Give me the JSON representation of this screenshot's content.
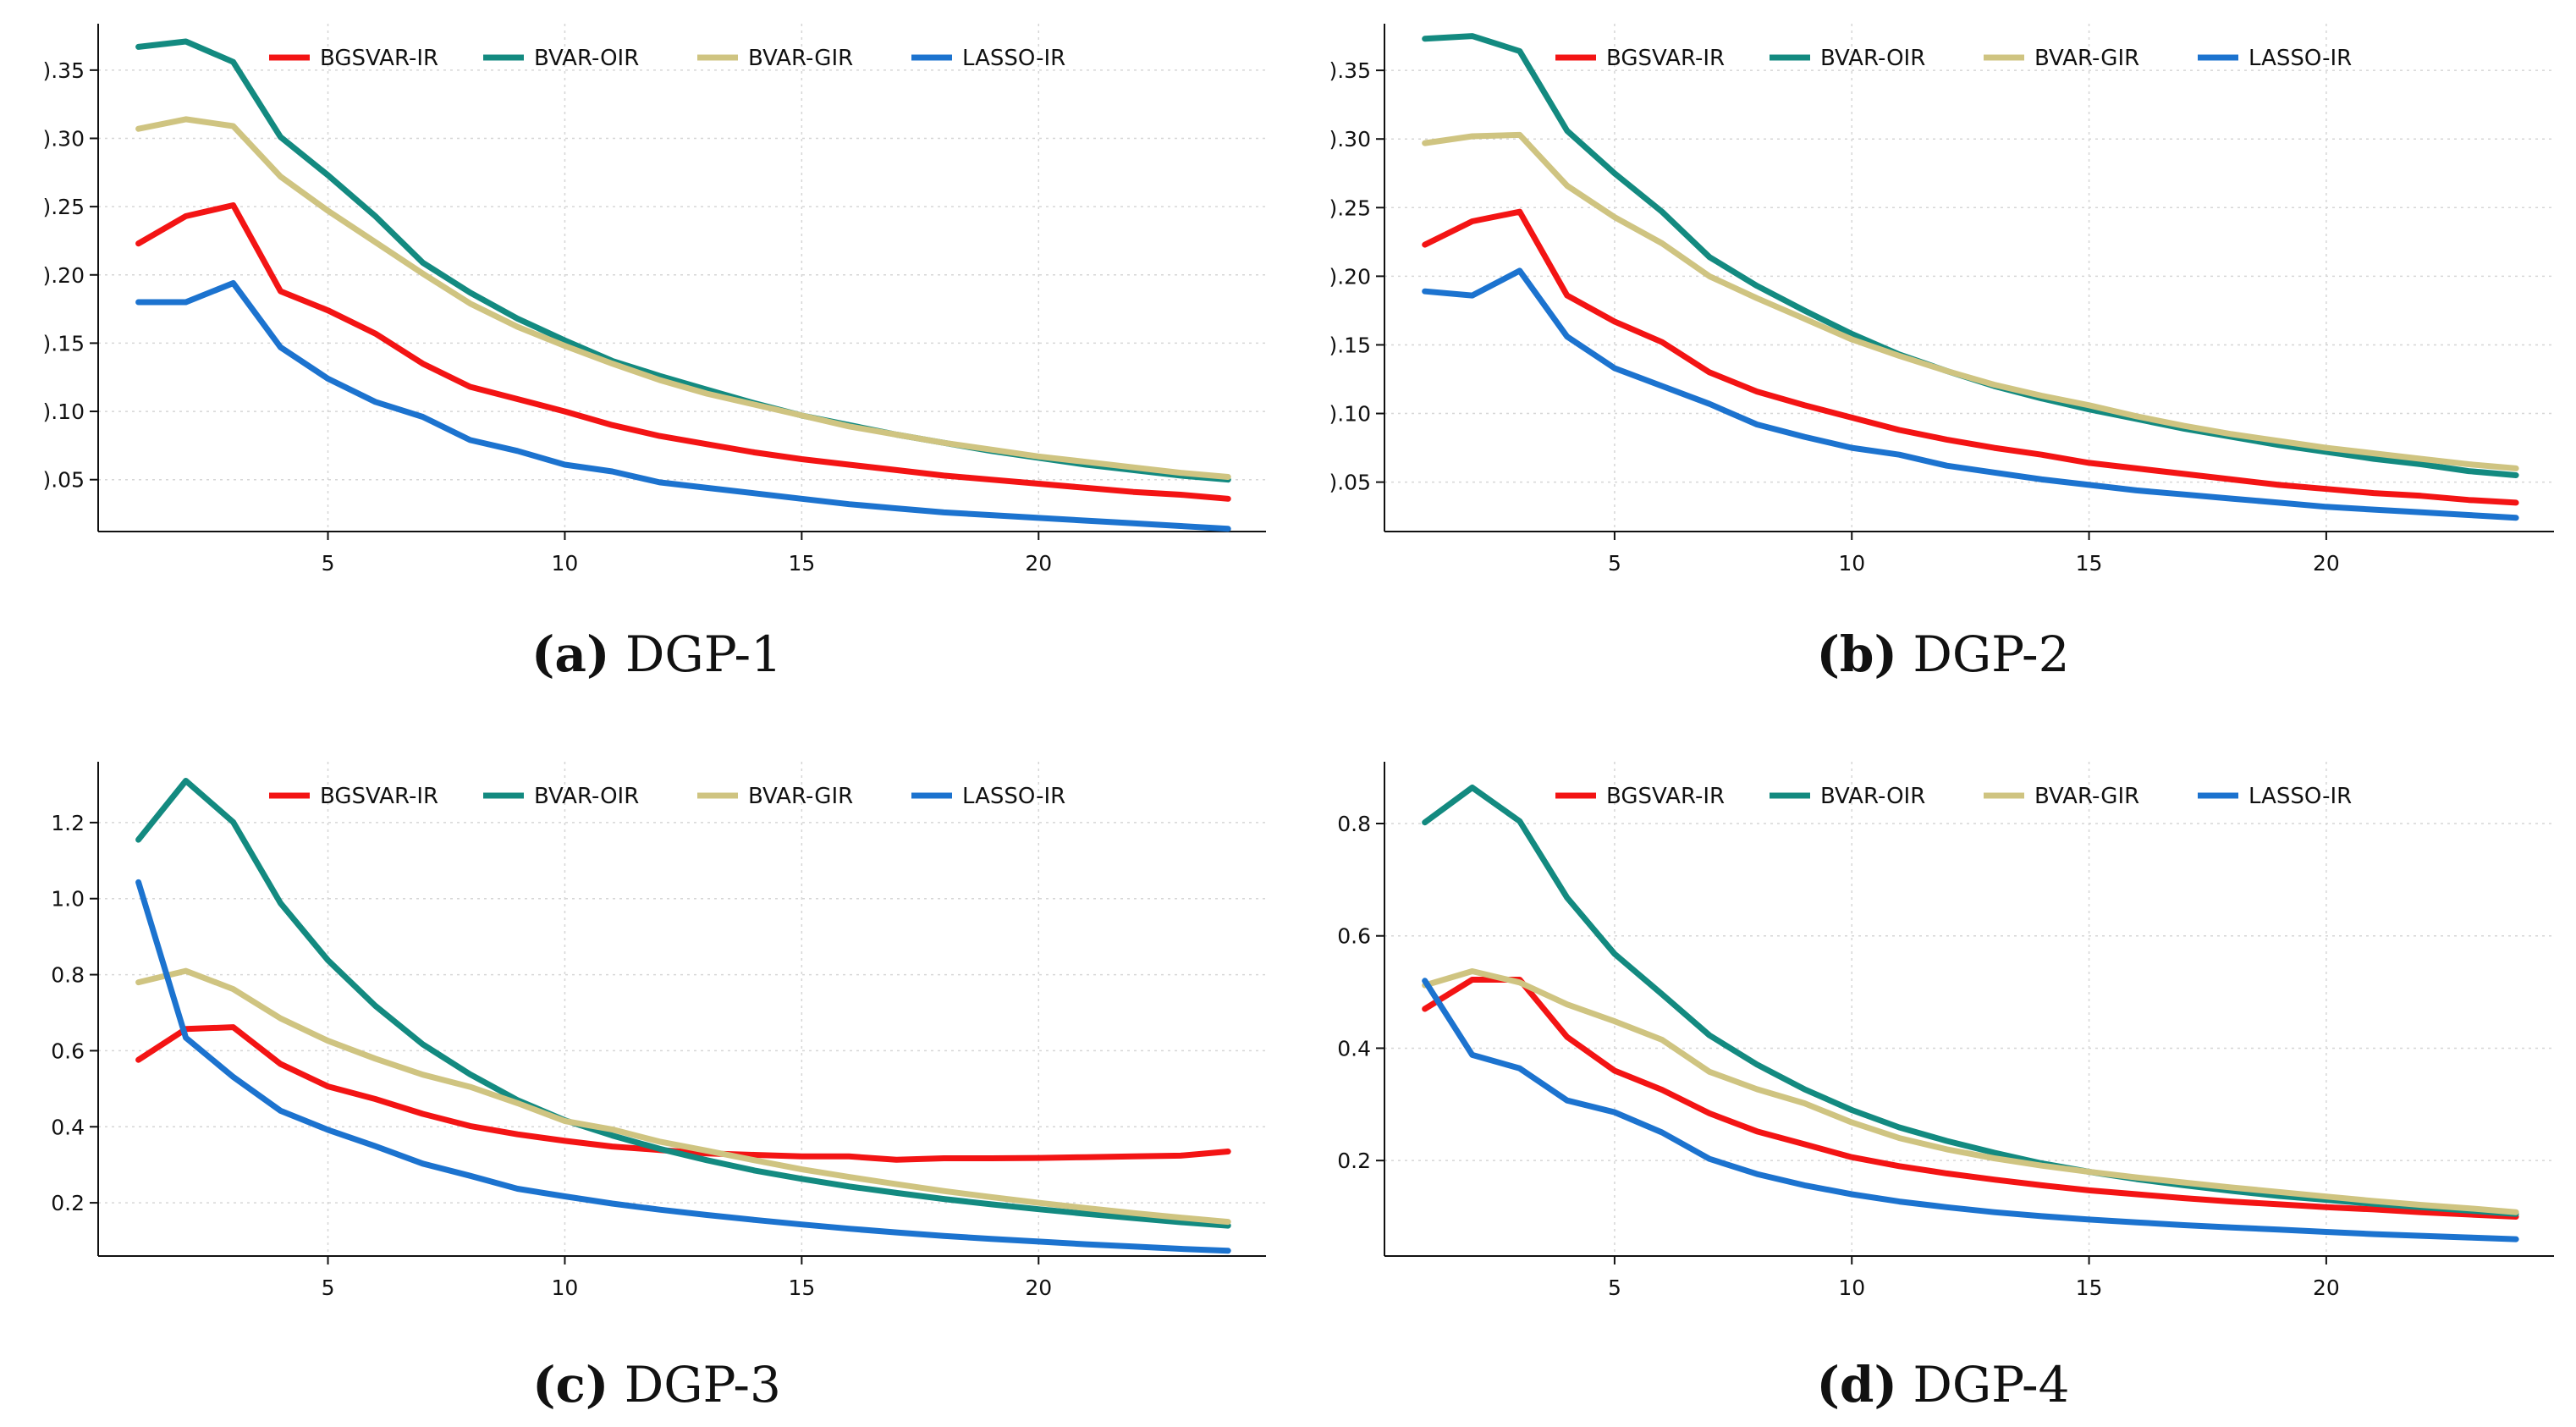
{
  "colors": {
    "BGSVAR-IR": "#f31414",
    "BVAR-OIR": "#138a80",
    "BVAR-GIR": "#cfc481",
    "LASSO-IR": "#1c73cf",
    "grid": "#d6d6d6",
    "axis": "#111111"
  },
  "chart_data": [
    {
      "type": "line",
      "caption_letter": "(a)",
      "caption_text": "DGP-1",
      "legend": [
        "BGSVAR-IR",
        "BVAR-OIR",
        "BVAR-GIR",
        "LASSO-IR"
      ],
      "x": [
        1,
        2,
        3,
        4,
        5,
        6,
        7,
        8,
        9,
        10,
        11,
        12,
        13,
        14,
        15,
        16,
        17,
        18,
        19,
        20,
        21,
        22,
        23,
        24
      ],
      "xticks": [
        5,
        10,
        15,
        20
      ],
      "xtick_labels": [
        "5",
        "10",
        "15",
        "20"
      ],
      "yticks": [
        0.05,
        0.1,
        0.15,
        0.2,
        0.25,
        0.3,
        0.35
      ],
      "ytick_labels": [
        ").05",
        ").10",
        ").15",
        ").20",
        ").25",
        ").30",
        ").35"
      ],
      "xlim": [
        0.15,
        24.8
      ],
      "ylim": [
        0.012,
        0.384
      ],
      "series": [
        {
          "name": "BGSVAR-IR",
          "values": [
            0.223,
            0.243,
            0.251,
            0.188,
            0.174,
            0.157,
            0.135,
            0.118,
            0.109,
            0.1,
            0.09,
            0.082,
            0.076,
            0.07,
            0.065,
            0.061,
            0.057,
            0.053,
            0.05,
            0.047,
            0.044,
            0.041,
            0.039,
            0.036
          ]
        },
        {
          "name": "BVAR-OIR",
          "values": [
            0.367,
            0.371,
            0.356,
            0.301,
            0.273,
            0.243,
            0.209,
            0.187,
            0.168,
            0.152,
            0.137,
            0.126,
            0.116,
            0.106,
            0.097,
            0.09,
            0.083,
            0.077,
            0.071,
            0.066,
            0.061,
            0.057,
            0.053,
            0.05
          ]
        },
        {
          "name": "BVAR-GIR",
          "values": [
            0.307,
            0.314,
            0.309,
            0.272,
            0.247,
            0.224,
            0.201,
            0.179,
            0.162,
            0.148,
            0.135,
            0.123,
            0.113,
            0.105,
            0.097,
            0.089,
            0.083,
            0.077,
            0.072,
            0.067,
            0.063,
            0.059,
            0.055,
            0.052
          ]
        },
        {
          "name": "LASSO-IR",
          "values": [
            0.18,
            0.18,
            0.194,
            0.147,
            0.124,
            0.107,
            0.096,
            0.079,
            0.071,
            0.061,
            0.056,
            0.048,
            0.044,
            0.04,
            0.036,
            0.032,
            0.029,
            0.026,
            0.024,
            0.022,
            0.02,
            0.018,
            0.016,
            0.014
          ]
        }
      ]
    },
    {
      "type": "line",
      "caption_letter": "(b)",
      "caption_text": "DGP-2",
      "legend": [
        "BGSVAR-IR",
        "BVAR-OIR",
        "BVAR-GIR",
        "LASSO-IR"
      ],
      "x": [
        1,
        2,
        3,
        4,
        5,
        6,
        7,
        8,
        9,
        10,
        11,
        12,
        13,
        14,
        15,
        16,
        17,
        18,
        19,
        20,
        21,
        22,
        23,
        24
      ],
      "xticks": [
        5,
        10,
        15,
        20
      ],
      "xtick_labels": [
        "5",
        "10",
        "15",
        "20"
      ],
      "yticks": [
        0.05,
        0.1,
        0.15,
        0.2,
        0.25,
        0.3,
        0.35
      ],
      "ytick_labels": [
        ").05",
        ").10",
        ").15",
        ").20",
        ").25",
        ").30",
        ").35"
      ],
      "xlim": [
        0.15,
        24.8
      ],
      "ylim": [
        0.014,
        0.384
      ],
      "series": [
        {
          "name": "BGSVAR-IR",
          "values": [
            0.223,
            0.24,
            0.247,
            0.186,
            0.167,
            0.152,
            0.13,
            0.116,
            0.106,
            0.097,
            0.088,
            0.081,
            0.075,
            0.07,
            0.064,
            0.06,
            0.056,
            0.052,
            0.048,
            0.045,
            0.042,
            0.04,
            0.037,
            0.035
          ]
        },
        {
          "name": "BVAR-OIR",
          "values": [
            0.373,
            0.375,
            0.364,
            0.306,
            0.275,
            0.247,
            0.214,
            0.193,
            0.175,
            0.158,
            0.143,
            0.131,
            0.12,
            0.111,
            0.103,
            0.096,
            0.089,
            0.083,
            0.077,
            0.072,
            0.067,
            0.063,
            0.058,
            0.055
          ]
        },
        {
          "name": "BVAR-GIR",
          "values": [
            0.297,
            0.302,
            0.303,
            0.266,
            0.243,
            0.224,
            0.2,
            0.184,
            0.169,
            0.154,
            0.142,
            0.131,
            0.121,
            0.113,
            0.106,
            0.098,
            0.091,
            0.085,
            0.08,
            0.075,
            0.071,
            0.067,
            0.063,
            0.06
          ]
        },
        {
          "name": "LASSO-IR",
          "values": [
            0.189,
            0.186,
            0.204,
            0.156,
            0.133,
            0.12,
            0.107,
            0.092,
            0.083,
            0.075,
            0.07,
            0.062,
            0.057,
            0.052,
            0.048,
            0.044,
            0.041,
            0.038,
            0.035,
            0.032,
            0.03,
            0.028,
            0.026,
            0.024
          ]
        }
      ]
    },
    {
      "type": "line",
      "caption_letter": "(c)",
      "caption_text": "DGP-3",
      "legend": [
        "BGSVAR-IR",
        "BVAR-OIR",
        "BVAR-GIR",
        "LASSO-IR"
      ],
      "x": [
        1,
        2,
        3,
        4,
        5,
        6,
        7,
        8,
        9,
        10,
        11,
        12,
        13,
        14,
        15,
        16,
        17,
        18,
        19,
        20,
        21,
        22,
        23,
        24
      ],
      "xticks": [
        5,
        10,
        15,
        20
      ],
      "xtick_labels": [
        "5",
        "10",
        "15",
        "20"
      ],
      "yticks": [
        0.2,
        0.4,
        0.6,
        0.8,
        1.0,
        1.2
      ],
      "ytick_labels": [
        "0.2",
        "0.4",
        "0.6",
        "0.8",
        "1.0",
        "1.2"
      ],
      "xlim": [
        0.15,
        24.8
      ],
      "ylim": [
        0.06,
        1.36
      ],
      "series": [
        {
          "name": "BGSVAR-IR",
          "values": [
            0.576,
            0.657,
            0.662,
            0.565,
            0.506,
            0.473,
            0.434,
            0.402,
            0.38,
            0.363,
            0.348,
            0.339,
            0.33,
            0.326,
            0.322,
            0.322,
            0.313,
            0.317,
            0.317,
            0.318,
            0.32,
            0.322,
            0.324,
            0.335
          ]
        },
        {
          "name": "BVAR-OIR",
          "values": [
            1.155,
            1.31,
            1.201,
            0.988,
            0.838,
            0.718,
            0.617,
            0.538,
            0.47,
            0.417,
            0.377,
            0.342,
            0.312,
            0.285,
            0.263,
            0.243,
            0.226,
            0.21,
            0.196,
            0.183,
            0.171,
            0.16,
            0.149,
            0.14
          ]
        },
        {
          "name": "BVAR-GIR",
          "values": [
            0.78,
            0.81,
            0.762,
            0.685,
            0.626,
            0.579,
            0.537,
            0.505,
            0.462,
            0.415,
            0.393,
            0.361,
            0.337,
            0.312,
            0.288,
            0.268,
            0.249,
            0.231,
            0.215,
            0.2,
            0.186,
            0.173,
            0.161,
            0.15
          ]
        },
        {
          "name": "LASSO-IR",
          "values": [
            1.043,
            0.634,
            0.531,
            0.442,
            0.392,
            0.349,
            0.303,
            0.271,
            0.237,
            0.217,
            0.198,
            0.182,
            0.168,
            0.155,
            0.143,
            0.132,
            0.122,
            0.113,
            0.105,
            0.098,
            0.091,
            0.085,
            0.079,
            0.074
          ]
        }
      ]
    },
    {
      "type": "line",
      "caption_letter": "(d)",
      "caption_text": "DGP-4",
      "legend": [
        "BGSVAR-IR",
        "BVAR-OIR",
        "BVAR-GIR",
        "LASSO-IR"
      ],
      "x": [
        1,
        2,
        3,
        4,
        5,
        6,
        7,
        8,
        9,
        10,
        11,
        12,
        13,
        14,
        15,
        16,
        17,
        18,
        19,
        20,
        21,
        22,
        23,
        24
      ],
      "xticks": [
        5,
        10,
        15,
        20
      ],
      "xtick_labels": [
        "5",
        "10",
        "15",
        "20"
      ],
      "yticks": [
        0.2,
        0.4,
        0.6,
        0.8
      ],
      "ytick_labels": [
        "0.2",
        "0.4",
        "0.6",
        "0.8"
      ],
      "xlim": [
        0.15,
        24.8
      ],
      "ylim": [
        0.03,
        0.91
      ],
      "series": [
        {
          "name": "BGSVAR-IR",
          "values": [
            0.47,
            0.522,
            0.522,
            0.42,
            0.36,
            0.326,
            0.284,
            0.252,
            0.229,
            0.206,
            0.19,
            0.177,
            0.166,
            0.156,
            0.147,
            0.14,
            0.133,
            0.127,
            0.122,
            0.117,
            0.113,
            0.108,
            0.104,
            0.1
          ]
        },
        {
          "name": "BVAR-OIR",
          "values": [
            0.802,
            0.864,
            0.804,
            0.668,
            0.568,
            0.496,
            0.423,
            0.371,
            0.327,
            0.29,
            0.259,
            0.235,
            0.214,
            0.195,
            0.18,
            0.167,
            0.156,
            0.146,
            0.137,
            0.13,
            0.123,
            0.117,
            0.111,
            0.105
          ]
        },
        {
          "name": "BVAR-GIR",
          "values": [
            0.512,
            0.537,
            0.517,
            0.478,
            0.448,
            0.415,
            0.358,
            0.327,
            0.302,
            0.268,
            0.24,
            0.22,
            0.204,
            0.191,
            0.18,
            0.17,
            0.161,
            0.152,
            0.144,
            0.136,
            0.128,
            0.121,
            0.115,
            0.108
          ]
        },
        {
          "name": "LASSO-IR",
          "values": [
            0.52,
            0.388,
            0.364,
            0.307,
            0.286,
            0.25,
            0.203,
            0.176,
            0.156,
            0.14,
            0.127,
            0.117,
            0.108,
            0.101,
            0.095,
            0.09,
            0.085,
            0.081,
            0.077,
            0.073,
            0.069,
            0.066,
            0.063,
            0.06
          ]
        }
      ]
    }
  ]
}
